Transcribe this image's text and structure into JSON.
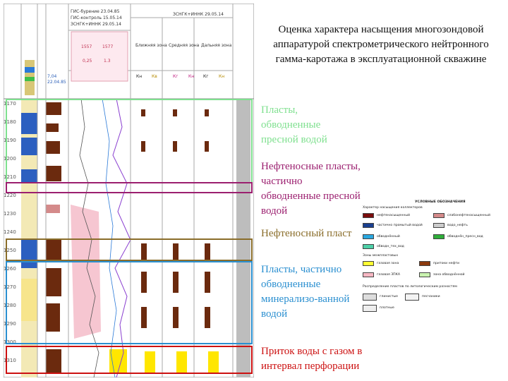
{
  "slide": {
    "title": "Оценка характера насыщения многозондовой аппаратурой спектрометрического нейтронного гамма-каротажа в эксплуатационной скважине",
    "notes": [
      {
        "text": "Пласты, обводненные пресной водой",
        "color": "#7fe08f"
      },
      {
        "text": "Нефтеносные пласты, частично обводненные пресной водой",
        "color": "#9b1f6f"
      },
      {
        "text": "Нефтеносный пласт",
        "color": "#8a6d2a"
      },
      {
        "text": "Пласты, частично обводненные минерализо-ванной водой",
        "color": "#2a8fd0"
      },
      {
        "text": "Приток воды с газом в интервал перфорации",
        "color": "#cc1111"
      }
    ]
  },
  "log": {
    "header": {
      "dates": [
        "ГИС-бурение 23.04.85",
        "ГИС-контроль 15.05.14",
        "ЗСНГК+ИННК 29.05.14",
        "ЗСНГК+ИННК 29.05.14"
      ],
      "tracks": [
        "Ближняя зона",
        "Средняя зона",
        "Дальняя зона"
      ],
      "curve_codes": [
        "Кн",
        "Кв",
        "Кг",
        "Кн",
        "Кг",
        "Кн",
        "Кв"
      ],
      "values": [
        "1557",
        "1577",
        "0,25",
        "1.3",
        "7,04",
        "22.04.85"
      ]
    },
    "depths": [
      "1170",
      "1180",
      "1190",
      "1200",
      "1210",
      "1220",
      "1230",
      "1240",
      "1250",
      "1260",
      "1270",
      "1280",
      "1290",
      "1300",
      "1310"
    ]
  },
  "legend": {
    "title": "УСЛОВНЫЕ ОБОЗНАЧЕНИЯ",
    "section1": "Характер насыщения коллекторов",
    "items": [
      {
        "label": "нефтенасыщенный",
        "color": "#7a0d0d"
      },
      {
        "label": "слабонефтенасыщенный",
        "color": "#d48a8a"
      },
      {
        "label": "частично промытый водой",
        "color": "#1a3f8f"
      },
      {
        "label": "водо_нефть",
        "color": "#cccccc"
      },
      {
        "label": "обводнённый",
        "color": "#2aa8e0"
      },
      {
        "label": "обводнён_пресн_вод",
        "color": "#2fae3a"
      },
      {
        "label": "обводн_тех_вод",
        "color": "#4dd0a8"
      }
    ],
    "section2": "Зоны межпластовых",
    "items2": [
      {
        "label": "газовая зона",
        "color": "#ffff33"
      },
      {
        "label": "притоки нефти",
        "color": "#8b3a0e"
      },
      {
        "label": "газовая ЗПКА",
        "color": "#f7b7c3"
      },
      {
        "label": "зона обводнённой",
        "color": "#c9f2b0"
      }
    ],
    "section3": "Распределение пластов по литологическим разностям",
    "items3": [
      {
        "label": "глинистые",
        "color": "#dddddd"
      },
      {
        "label": "плотные",
        "color": "#eeeeee"
      },
      {
        "label": "песчаники",
        "color": "#f3f3f3"
      }
    ]
  },
  "colors": {
    "green": "#7fe08f",
    "purple": "#9b1f6f",
    "gold": "#8a6d2a",
    "blue": "#2a8fd0",
    "red": "#cc1111"
  }
}
